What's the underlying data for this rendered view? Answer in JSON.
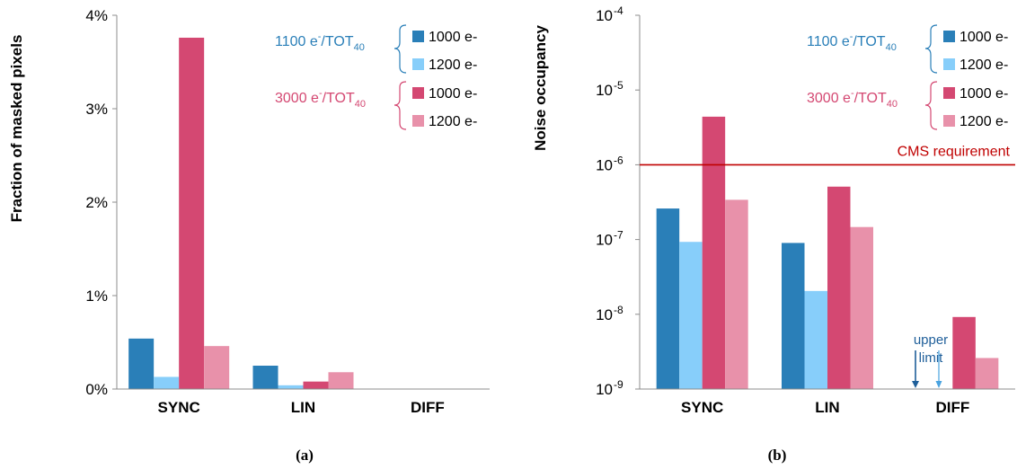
{
  "colors": {
    "blue_1000": "#2a7fb8",
    "blue_1200": "#87cefa",
    "red_1000": "#d44872",
    "red_1200": "#e891aa",
    "blue_text": "#2a7fb8",
    "red_text": "#d44872",
    "cms_line": "#c00000",
    "annot": "#1f5f9a"
  },
  "legend": {
    "group1": {
      "main": "1100 e",
      "sup": "-",
      "rest": "/TOT",
      "sub": "40"
    },
    "group2": {
      "main": "3000 e",
      "sup": "-",
      "rest": "/TOT",
      "sub": "40"
    },
    "entries": [
      "1000 e-",
      "1200 e-",
      "1000 e-",
      "1200 e-"
    ]
  },
  "chart_data": [
    {
      "type": "bar",
      "caption": "(a)",
      "ylabel": "Fraction of masked pixels",
      "categories": [
        "SYNC",
        "LIN",
        "DIFF"
      ],
      "yticks": [
        "0%",
        "1%",
        "2%",
        "3%",
        "4%"
      ],
      "ylim": [
        0,
        4
      ],
      "unit": "percent",
      "series": [
        {
          "name": "1100 e-/TOT40 1000 e-",
          "values": [
            0.54,
            0.25,
            0.0
          ]
        },
        {
          "name": "1100 e-/TOT40 1200 e-",
          "values": [
            0.13,
            0.04,
            0.0
          ]
        },
        {
          "name": "3000 e-/TOT40 1000 e-",
          "values": [
            3.76,
            0.08,
            0.0
          ]
        },
        {
          "name": "3000 e-/TOT40 1200 e-",
          "values": [
            0.46,
            0.18,
            0.0
          ]
        }
      ]
    },
    {
      "type": "bar",
      "caption": "(b)",
      "ylabel": "Noise occupancy",
      "yscale": "log",
      "categories": [
        "SYNC",
        "LIN",
        "DIFF"
      ],
      "ylim": [
        1e-09,
        0.0001
      ],
      "ytick_base": "10",
      "ytick_exponents": [
        "-4",
        "-5",
        "-6",
        "-7",
        "-8",
        "-9"
      ],
      "series": [
        {
          "name": "1100 e-/TOT40 1000 e-",
          "values": [
            2.6e-07,
            9e-08,
            null
          ]
        },
        {
          "name": "1100 e-/TOT40 1200 e-",
          "values": [
            9.3e-08,
            2.05e-08,
            null
          ]
        },
        {
          "name": "3000 e-/TOT40 1000 e-",
          "values": [
            4.4e-06,
            5.1e-07,
            9.2e-09
          ]
        },
        {
          "name": "3000 e-/TOT40 1200 e-",
          "values": [
            3.4e-07,
            1.47e-07,
            2.6e-09
          ]
        }
      ],
      "reference_line": {
        "label": "CMS requirement",
        "value": 1e-06
      },
      "annotation": {
        "lines": [
          "upper",
          "limit"
        ]
      }
    }
  ]
}
